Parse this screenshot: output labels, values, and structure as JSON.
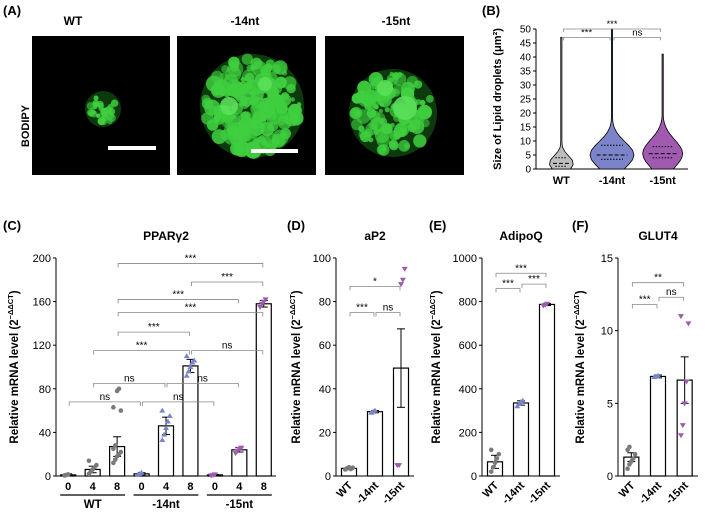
{
  "panels": {
    "A": {
      "label": "(A)",
      "stain_label": "BODIPY",
      "titles": [
        "WT",
        "-14nt",
        "-15nt"
      ]
    },
    "B": {
      "label": "(B)"
    },
    "C": {
      "label": "(C)"
    },
    "D": {
      "label": "(D)"
    },
    "E": {
      "label": "(E)"
    },
    "F": {
      "label": "(F)"
    }
  },
  "colors": {
    "wt": "#bdbdbd",
    "nt14": "#7b84c9",
    "nt15": "#a05ab0",
    "points_wt": "#7a7a7a",
    "points_14": "#7b84c9",
    "points_15": "#a05ab0",
    "cells": "#3fcf3f"
  },
  "chart_data": [
    {
      "id": "B",
      "type": "violin",
      "ylabel": "Size of Lipid droplets (μm²)",
      "categories": [
        "WT",
        "-14nt",
        "-15nt"
      ],
      "ylim": [
        0,
        50
      ],
      "yticks": [
        0,
        5,
        10,
        15,
        20,
        25,
        30,
        35,
        40,
        45,
        50
      ],
      "max": [
        47,
        50,
        41
      ],
      "median": [
        2,
        5,
        5.5
      ],
      "q1": [
        1,
        3.5,
        4
      ],
      "q3": [
        4,
        8.5,
        8
      ],
      "significance": [
        {
          "from": 0,
          "to": 1,
          "label": "***",
          "y": 47
        },
        {
          "from": 0,
          "to": 2,
          "label": "***",
          "y": 50
        },
        {
          "from": 1,
          "to": 2,
          "label": "ns",
          "y": 47
        }
      ]
    },
    {
      "id": "C",
      "type": "bar",
      "title": "PPARγ2",
      "ylabel": "Relative mRNA level (2",
      "ylabel_sup": "−ΔΔCT",
      "ylim": [
        0,
        200
      ],
      "yticks": [
        0,
        40,
        80,
        120,
        160,
        200
      ],
      "categories": [
        "0",
        "4",
        "8",
        "0",
        "4",
        "8",
        "0",
        "4",
        "8"
      ],
      "groups": [
        "WT",
        "-14nt",
        "-15nt"
      ],
      "values": [
        1,
        6,
        27,
        2,
        46,
        101,
        1,
        24,
        158
      ],
      "errors": [
        1,
        3,
        9,
        1,
        8,
        6,
        0.5,
        2,
        3
      ],
      "points": [
        [
          0.5,
          1,
          1.5
        ],
        [
          2,
          4,
          6,
          8,
          10,
          14
        ],
        [
          12,
          15,
          18,
          20,
          22,
          25,
          28,
          78,
          80,
          60,
          63
        ],
        [
          1,
          2,
          3
        ],
        [
          33,
          38,
          44,
          50,
          55,
          60
        ],
        [
          92,
          96,
          100,
          104,
          106,
          110
        ],
        [
          0.5,
          1,
          1.5
        ],
        [
          21,
          23,
          25,
          26
        ],
        [
          155,
          158,
          160,
          162
        ]
      ],
      "significance": [
        {
          "from": 0,
          "to": 3,
          "label": "ns",
          "y": 68
        },
        {
          "from": 1,
          "to": 4,
          "label": "ns",
          "y": 85
        },
        {
          "from": 3,
          "to": 6,
          "label": "ns",
          "y": 68
        },
        {
          "from": 4,
          "to": 7,
          "label": "ns",
          "y": 85
        },
        {
          "from": 1,
          "to": 5,
          "label": "***",
          "y": 115
        },
        {
          "from": 5,
          "to": 8,
          "label": "ns",
          "y": 115
        },
        {
          "from": 2,
          "to": 5,
          "label": "***",
          "y": 132
        },
        {
          "from": 2,
          "to": 8,
          "label": "***",
          "y": 150
        },
        {
          "from": 2,
          "to": 7,
          "label": "***",
          "y": 162
        },
        {
          "from": 5,
          "to": 8,
          "label": "***",
          "y": 178
        },
        {
          "from": 2,
          "to": 8,
          "label": "***",
          "y": 195
        }
      ]
    },
    {
      "id": "D",
      "type": "bar",
      "title": "aP2",
      "ylabel": "Relative mRNA level (2",
      "ylabel_sup": "−ΔΔCT",
      "ylim": [
        0,
        100
      ],
      "yticks": [
        0,
        20,
        40,
        60,
        80,
        100
      ],
      "categories": [
        "WT",
        "-14nt",
        "-15nt"
      ],
      "values": [
        3.5,
        29.5,
        49.5
      ],
      "errors": [
        0.5,
        0.5,
        18
      ],
      "points": [
        [
          3,
          3.5,
          4,
          3.2,
          3.8
        ],
        [
          29,
          29.5,
          30
        ],
        [
          5,
          5,
          88,
          90,
          95
        ]
      ],
      "significance": [
        {
          "from": 0,
          "to": 1,
          "label": "***",
          "y": 75
        },
        {
          "from": 1,
          "to": 2,
          "label": "ns",
          "y": 75
        },
        {
          "from": 0,
          "to": 2,
          "label": "*",
          "y": 87
        }
      ]
    },
    {
      "id": "E",
      "type": "bar",
      "title": "AdipoQ",
      "ylabel": "Relative mRNA level (2",
      "ylabel_sup": "−ΔΔCT",
      "ylim": [
        0,
        1000
      ],
      "yticks": [
        0,
        200,
        400,
        600,
        800,
        1000
      ],
      "categories": [
        "WT",
        "-14nt",
        "-15nt"
      ],
      "values": [
        65,
        335,
        787
      ],
      "errors": [
        30,
        10,
        5
      ],
      "points": [
        [
          20,
          40,
          60,
          80,
          100,
          120
        ],
        [
          320,
          330,
          340,
          345
        ],
        [
          782,
          785,
          790
        ]
      ],
      "significance": [
        {
          "from": 0,
          "to": 1,
          "label": "***",
          "y": 860
        },
        {
          "from": 1,
          "to": 2,
          "label": "***",
          "y": 880
        },
        {
          "from": 0,
          "to": 2,
          "label": "***",
          "y": 930
        }
      ]
    },
    {
      "id": "F",
      "type": "bar",
      "title": "GLUT4",
      "ylabel": "Relative mRNA level (2",
      "ylabel_sup": "−ΔΔCT",
      "ylim": [
        0,
        15
      ],
      "yticks": [
        0,
        5,
        10,
        15
      ],
      "categories": [
        "WT",
        "-14nt",
        "-15nt"
      ],
      "values": [
        1.3,
        6.85,
        6.6
      ],
      "errors": [
        0.3,
        0.1,
        1.6
      ],
      "points": [
        [
          0.5,
          0.8,
          1.0,
          1.2,
          1.5,
          1.8,
          2.0
        ],
        [
          6.8,
          6.85,
          6.9
        ],
        [
          2.8,
          3.5,
          5.0,
          6.5,
          10.5,
          11.0
        ]
      ],
      "significance": [
        {
          "from": 0,
          "to": 1,
          "label": "***",
          "y": 11.8
        },
        {
          "from": 1,
          "to": 2,
          "label": "ns",
          "y": 12.3
        },
        {
          "from": 0,
          "to": 2,
          "label": "**",
          "y": 13.3
        }
      ]
    }
  ],
  "panel_c_groups": [
    "WT",
    "-14nt",
    "-15nt"
  ]
}
